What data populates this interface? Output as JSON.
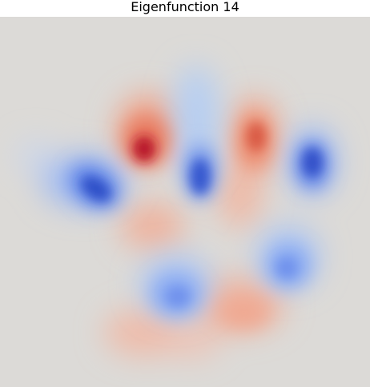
{
  "figure": {
    "title": "Eigenfunction 14",
    "colormap": "coolwarm",
    "colors": {
      "background": "#dcdad7",
      "positive_peak": "#b40426",
      "positive": "#ee8468",
      "positive_soft": "#f2a98e",
      "negative_peak": "#2f4fc7",
      "negative": "#4a6fe3",
      "negative_soft": "#a9c4f7"
    }
  }
}
